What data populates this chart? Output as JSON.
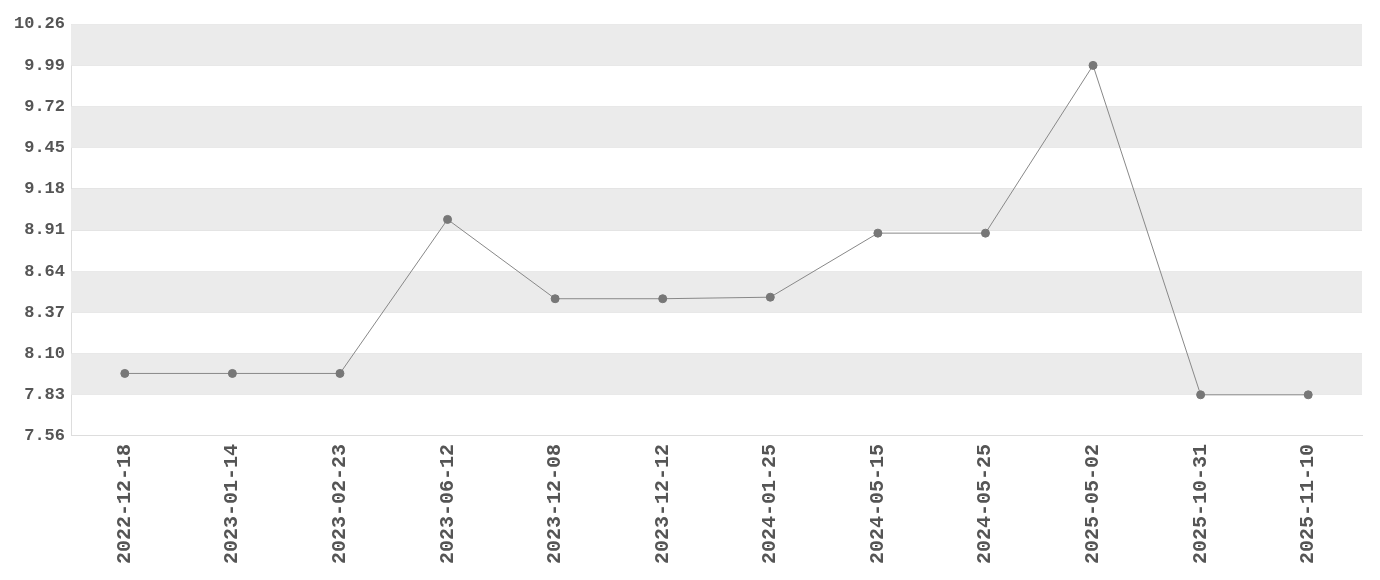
{
  "chart_data": {
    "type": "line",
    "categories": [
      "2022-12-18",
      "2023-01-14",
      "2023-02-23",
      "2023-06-12",
      "2023-12-08",
      "2023-12-12",
      "2024-01-25",
      "2024-05-15",
      "2024-05-25",
      "2025-05-02",
      "2025-10-31",
      "2025-11-10"
    ],
    "series": [
      {
        "color": "#888888",
        "values": [
          7.97,
          7.97,
          7.97,
          8.98,
          8.46,
          8.46,
          8.47,
          8.89,
          8.89,
          9.99,
          7.83,
          7.83
        ]
      }
    ],
    "ylim": [
      7.56,
      10.26
    ],
    "yticks": [
      {
        "value": 7.56,
        "label": "7.56"
      },
      {
        "value": 7.83,
        "label": "7.83"
      },
      {
        "value": 8.1,
        "label": "8.10"
      },
      {
        "value": 8.37,
        "label": "8.37"
      },
      {
        "value": 8.64,
        "label": "8.64"
      },
      {
        "value": 8.91,
        "label": "8.91"
      },
      {
        "value": 9.18,
        "label": "9.18"
      },
      {
        "value": 9.45,
        "label": "9.45"
      },
      {
        "value": 9.72,
        "label": "9.72"
      },
      {
        "value": 9.99,
        "label": "9.99"
      },
      {
        "value": 10.26,
        "label": "10.26"
      }
    ],
    "grid": "y",
    "legend": false,
    "marker": "circle",
    "line_style": "solid"
  }
}
